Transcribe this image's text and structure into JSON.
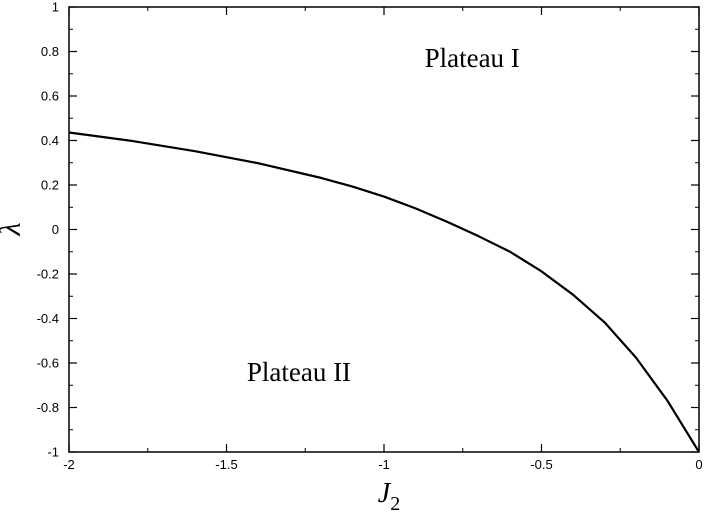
{
  "chart_data": {
    "type": "line",
    "title": "",
    "xlabel": "J",
    "xlabel_sub": "2",
    "ylabel": "λ",
    "xlim": [
      -2,
      0
    ],
    "ylim": [
      -1,
      1
    ],
    "grid": false,
    "x_ticks": [
      -2,
      -1.5,
      -1,
      -0.5,
      0
    ],
    "x_tick_labels": [
      "-2",
      "-1.5",
      "-1",
      "-0.5",
      "0"
    ],
    "y_ticks": [
      -1,
      -0.8,
      -0.6,
      -0.4,
      -0.2,
      0,
      0.2,
      0.4,
      0.6,
      0.8,
      1
    ],
    "y_tick_labels": [
      "-1",
      "-0.8",
      "-0.6",
      "-0.4",
      "-0.2",
      "0",
      "0.2",
      "0.4",
      "0.6",
      "0.8",
      "1"
    ],
    "series": [
      {
        "color": "#000000",
        "x": [
          -2,
          -1.8,
          -1.6,
          -1.4,
          -1.2,
          -1.1,
          -1.0,
          -0.9,
          -0.8,
          -0.7,
          -0.6,
          -0.5,
          -0.4,
          -0.3,
          -0.2,
          -0.1,
          -0.05,
          0
        ],
        "y": [
          0.436,
          0.398,
          0.352,
          0.298,
          0.232,
          0.193,
          0.148,
          0.095,
          0.035,
          -0.03,
          -0.1,
          -0.188,
          -0.293,
          -0.417,
          -0.576,
          -0.77,
          -0.885,
          -1.0
        ]
      }
    ],
    "annotations": [
      {
        "text": "Plateau I",
        "x": -0.72,
        "y": 0.73
      },
      {
        "text": "Plateau II",
        "x": -1.27,
        "y": -0.68
      }
    ]
  }
}
